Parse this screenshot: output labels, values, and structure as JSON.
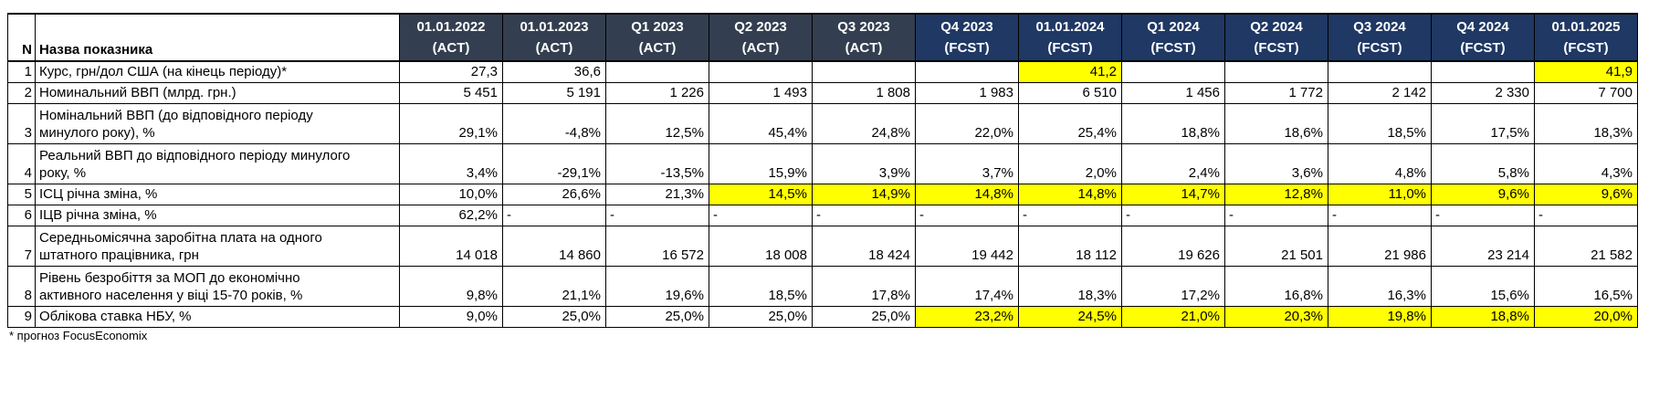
{
  "table": {
    "corner": {
      "number_header": "N",
      "name_header": "Назва показника"
    },
    "columns": [
      {
        "period": "01.01.2022",
        "tag": "(ACT)",
        "type": "act"
      },
      {
        "period": "01.01.2023",
        "tag": "(ACT)",
        "type": "act"
      },
      {
        "period": "Q1 2023",
        "tag": "(ACT)",
        "type": "act"
      },
      {
        "period": "Q2 2023",
        "tag": "(ACT)",
        "type": "act"
      },
      {
        "period": "Q3 2023",
        "tag": "(ACT)",
        "type": "act"
      },
      {
        "period": "Q4 2023",
        "tag": "(FCST)",
        "type": "fcst"
      },
      {
        "period": "01.01.2024",
        "tag": "(FCST)",
        "type": "fcst"
      },
      {
        "period": "Q1 2024",
        "tag": "(FCST)",
        "type": "fcst"
      },
      {
        "period": "Q2 2024",
        "tag": "(FCST)",
        "type": "fcst"
      },
      {
        "period": "Q3 2024",
        "tag": "(FCST)",
        "type": "fcst"
      },
      {
        "period": "Q4 2024",
        "tag": "(FCST)",
        "type": "fcst"
      },
      {
        "period": "01.01.2025",
        "tag": "(FCST)",
        "type": "fcst"
      }
    ],
    "rows": [
      {
        "n": "1",
        "name": "Курс, грн/дол США (на кінець періоду)*",
        "values": [
          "27,3",
          "36,6",
          "",
          "",
          "",
          "",
          "41,2",
          "",
          "",
          "",
          "",
          "41,9"
        ],
        "highlight": [
          6,
          11
        ]
      },
      {
        "n": "2",
        "name": "Номинальний ВВП (млрд. грн.)",
        "values": [
          "5 451",
          "5 191",
          "1 226",
          "1 493",
          "1 808",
          "1 983",
          "6 510",
          "1 456",
          "1 772",
          "2 142",
          "2 330",
          "7 700"
        ],
        "highlight": []
      },
      {
        "n": "3",
        "name": "Номінальний ВВП (до відповідного періоду\nминулого року), %",
        "values": [
          "29,1%",
          "-4,8%",
          "12,5%",
          "45,4%",
          "24,8%",
          "22,0%",
          "25,4%",
          "18,8%",
          "18,6%",
          "18,5%",
          "17,5%",
          "18,3%"
        ],
        "highlight": []
      },
      {
        "n": "4",
        "name": "Реальний ВВП до відповідного періоду минулого\nроку, %",
        "values": [
          "3,4%",
          "-29,1%",
          "-13,5%",
          "15,9%",
          "3,9%",
          "3,7%",
          "2,0%",
          "2,4%",
          "3,6%",
          "4,8%",
          "5,8%",
          "4,3%"
        ],
        "highlight": []
      },
      {
        "n": "5",
        "name": "ІСЦ річна зміна, %",
        "values": [
          "10,0%",
          "26,6%",
          "21,3%",
          "14,5%",
          "14,9%",
          "14,8%",
          "14,8%",
          "14,7%",
          "12,8%",
          "11,0%",
          "9,6%",
          "9,6%"
        ],
        "highlight": [
          3,
          4,
          5,
          6,
          7,
          8,
          9,
          10,
          11
        ]
      },
      {
        "n": "6",
        "name": "ІЦВ річна зміна, %",
        "values": [
          "62,2%",
          "-",
          "-",
          "-",
          "-",
          "-",
          "-",
          "-",
          "-",
          "-",
          "-",
          "-"
        ],
        "highlight": []
      },
      {
        "n": "7",
        "name": "Середньомісячна заробітна плата на одного\nштатного працівника, грн",
        "values": [
          "14 018",
          "14 860",
          "16 572",
          "18 008",
          "18 424",
          "19 442",
          "18 112",
          "19 626",
          "21 501",
          "21 986",
          "23 214",
          "21 582"
        ],
        "highlight": []
      },
      {
        "n": "8",
        "name": "Рівень безробіття за МОП до економічно\nактивного населення у віці 15-70 років, %",
        "values": [
          "9,8%",
          "21,1%",
          "19,6%",
          "18,5%",
          "17,8%",
          "17,4%",
          "18,3%",
          "17,2%",
          "16,8%",
          "16,3%",
          "15,6%",
          "16,5%"
        ],
        "highlight": []
      },
      {
        "n": "9",
        "name": "Облікова ставка НБУ, %",
        "values": [
          "9,0%",
          "25,0%",
          "25,0%",
          "25,0%",
          "25,0%",
          "23,2%",
          "24,5%",
          "21,0%",
          "20,3%",
          "19,8%",
          "18,8%",
          "20,0%"
        ],
        "highlight": [
          5,
          6,
          7,
          8,
          9,
          10,
          11
        ]
      }
    ]
  },
  "footnote": "* прогноз FocusEconomix",
  "colors": {
    "act_header": "#333F50",
    "fcst_header": "#1F3864",
    "highlight": "#FFFF00",
    "header_text": "#FFFFFF",
    "grid_border": "#000000"
  }
}
